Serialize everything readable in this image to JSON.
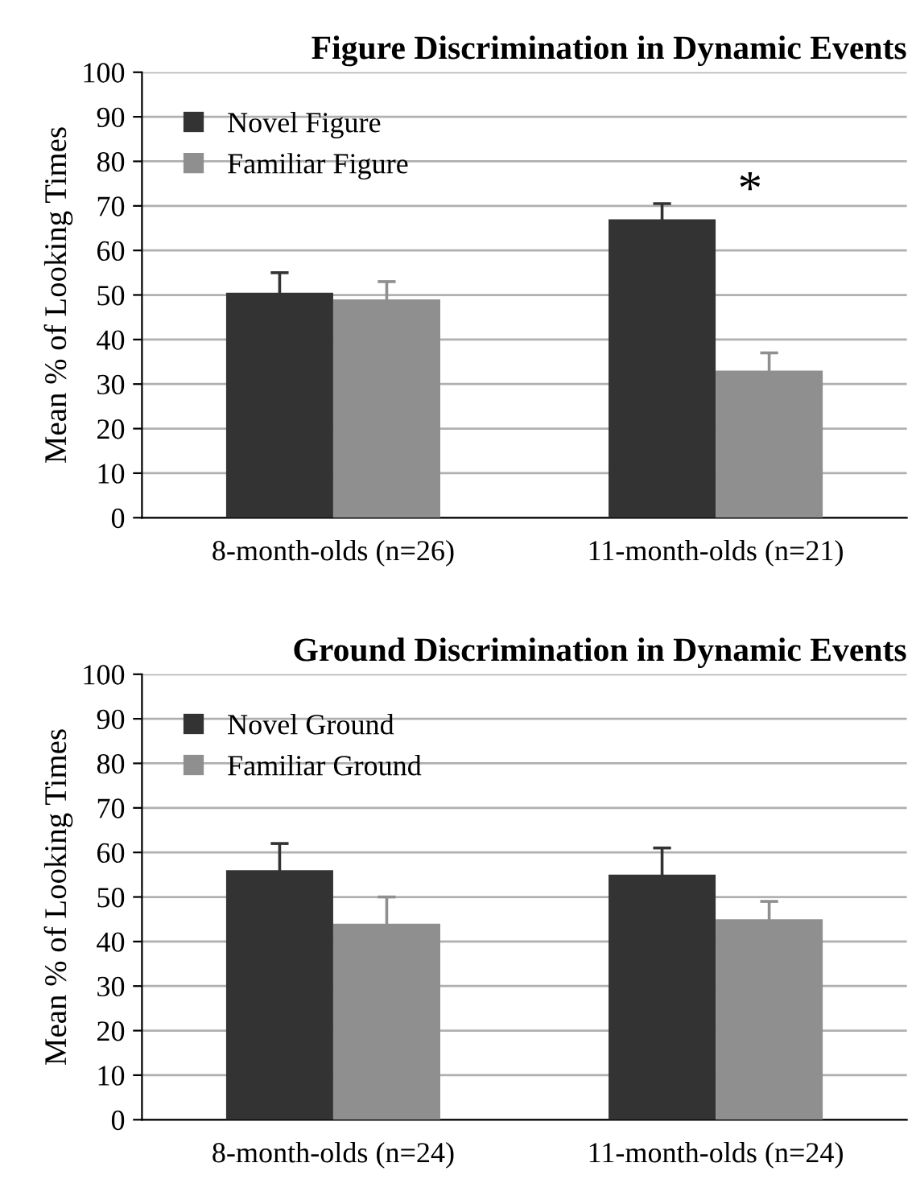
{
  "chart_data": [
    {
      "type": "bar",
      "title": "Figure Discrimination in Dynamic Events",
      "ylabel": "Mean % of Looking Times",
      "categories": [
        "8-month-olds (n=26)",
        "11-month-olds (n=21)"
      ],
      "series": [
        {
          "name": "Novel Figure",
          "color": "#333333",
          "values": [
            50.5,
            67
          ],
          "errors": [
            4.5,
            3.5
          ]
        },
        {
          "name": "Familiar Figure",
          "color": "#8f8f8f",
          "values": [
            49,
            33
          ],
          "errors": [
            4,
            4
          ]
        }
      ],
      "ylim": [
        0,
        100
      ],
      "yticks": [
        0,
        10,
        20,
        30,
        40,
        50,
        60,
        70,
        80,
        90,
        100
      ],
      "grid": "y",
      "legend": "top left",
      "annotations": [
        "*"
      ]
    },
    {
      "type": "bar",
      "title": "Ground Discrimination in Dynamic Events",
      "ylabel": "Mean % of Looking Times",
      "categories": [
        "8-month-olds (n=24)",
        "11-month-olds (n=24)"
      ],
      "series": [
        {
          "name": "Novel Ground",
          "color": "#333333",
          "values": [
            56,
            55
          ],
          "errors": [
            6,
            6
          ]
        },
        {
          "name": "Familiar Ground",
          "color": "#8f8f8f",
          "values": [
            44,
            45
          ],
          "errors": [
            6,
            4
          ]
        }
      ],
      "ylim": [
        0,
        100
      ],
      "yticks": [
        0,
        10,
        20,
        30,
        40,
        50,
        60,
        70,
        80,
        90,
        100
      ],
      "grid": "y",
      "legend": "top left"
    }
  ]
}
